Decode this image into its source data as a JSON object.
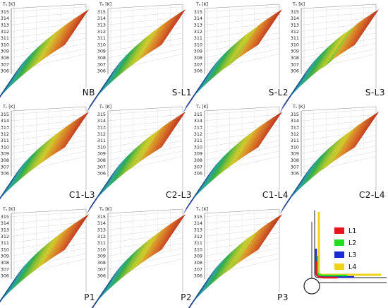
{
  "chart_data": {
    "type": "surface",
    "zlabel": "Tₙ [K]",
    "z_ticks": [
      306,
      307,
      308,
      309,
      310,
      311,
      312,
      313,
      314,
      315
    ],
    "zlim": [
      305.5,
      315.5
    ],
    "colormap": [
      "#1f3fb0",
      "#1e7ad6",
      "#19b9b4",
      "#22c04a",
      "#8fd62a",
      "#e6e022",
      "#f2a21e",
      "#e9641c",
      "#c92a14"
    ],
    "panels": [
      {
        "label": "NB",
        "z_min": 305.9,
        "z_max": 315.0,
        "kink": 0.0
      },
      {
        "label": "S-L1",
        "z_min": 305.9,
        "z_max": 315.0,
        "kink": 0.1
      },
      {
        "label": "S-L2",
        "z_min": 305.9,
        "z_max": 315.0,
        "kink": 0.35
      },
      {
        "label": "S-L3",
        "z_min": 305.9,
        "z_max": 315.0,
        "kink": 0.55
      },
      {
        "label": "C1-L3",
        "z_min": 306.0,
        "z_max": 315.0,
        "kink": 0.05
      },
      {
        "label": "C2-L3",
        "z_min": 306.0,
        "z_max": 315.0,
        "kink": 0.2
      },
      {
        "label": "C1-L4",
        "z_min": 306.0,
        "z_max": 315.0,
        "kink": 0.05
      },
      {
        "label": "C2-L4",
        "z_min": 306.0,
        "z_max": 315.0,
        "kink": 0.2
      },
      {
        "label": "P1",
        "z_min": 305.9,
        "z_max": 315.0,
        "kink": 0.05
      },
      {
        "label": "P2",
        "z_min": 305.9,
        "z_max": 315.0,
        "kink": 0.15
      },
      {
        "label": "P3",
        "z_min": 305.9,
        "z_max": 315.0,
        "kink": 0.3
      }
    ],
    "legend": [
      {
        "name": "L1",
        "color": "#e8141c"
      },
      {
        "name": "L2",
        "color": "#22dd22"
      },
      {
        "name": "L3",
        "color": "#1a2bd6"
      },
      {
        "name": "L4",
        "color": "#f2d21a"
      }
    ]
  }
}
